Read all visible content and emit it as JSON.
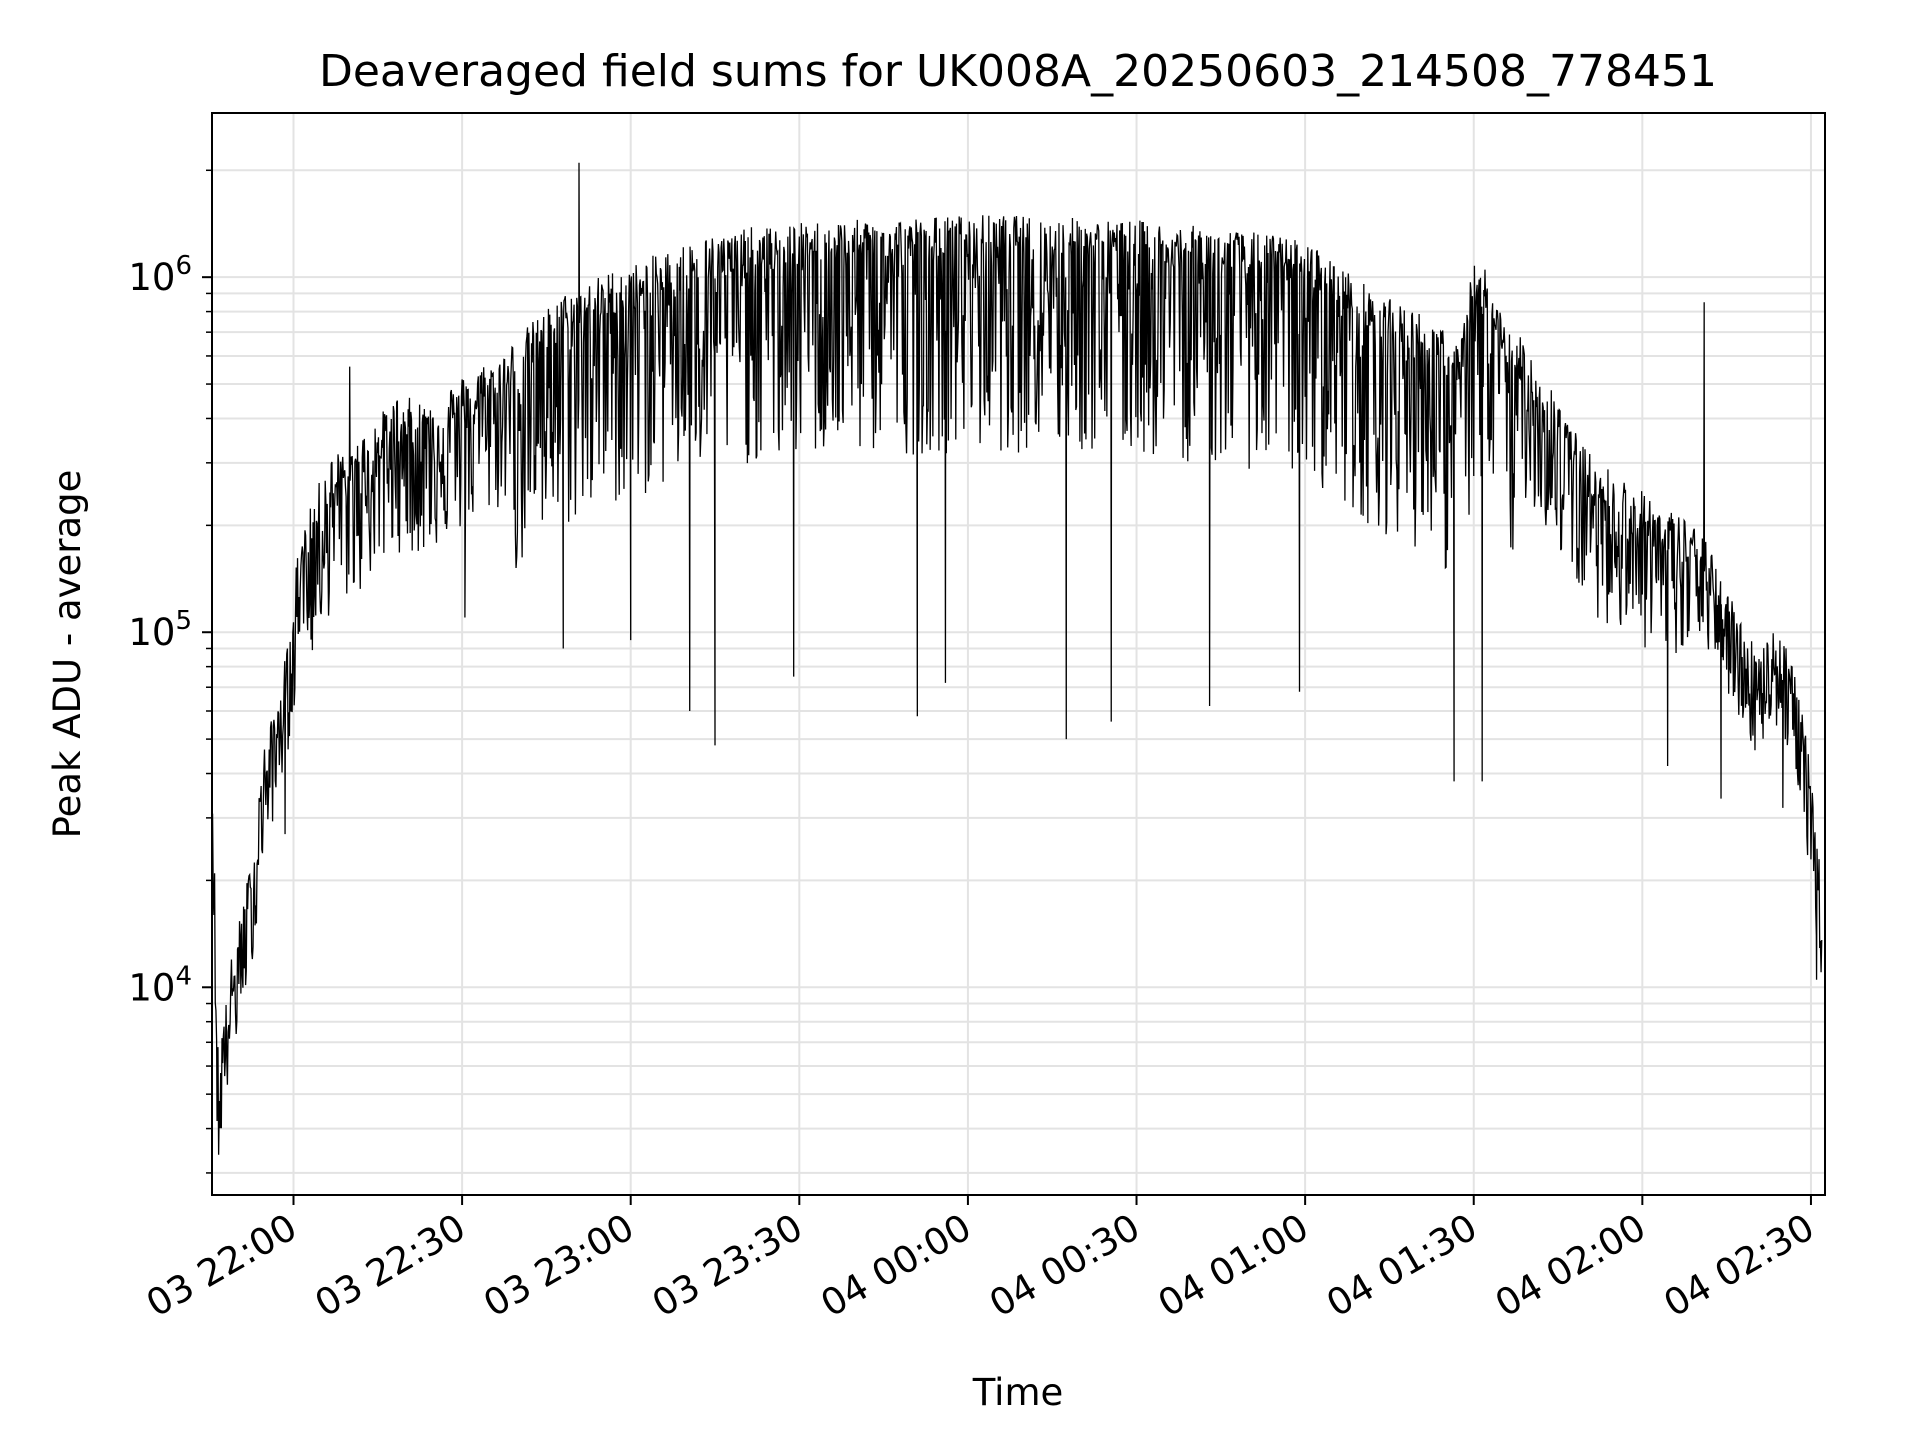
{
  "chart_data": {
    "type": "line",
    "title": "Deaveraged field sums for UK008A_20250603_214508_778451",
    "xlabel": "Time",
    "ylabel": "Peak ADU - average",
    "yscale": "log",
    "grid": true,
    "line_color": "#000000",
    "grid_color": "#e3e3e3",
    "x_tick_labels": [
      "03 22:00",
      "03 22:30",
      "03 23:00",
      "03 23:30",
      "04 00:00",
      "04 00:30",
      "04 01:00",
      "04 01:30",
      "04 02:00",
      "04 02:30"
    ],
    "x_tick_minutes": [
      60,
      90,
      120,
      150,
      180,
      210,
      240,
      270,
      300,
      330
    ],
    "xlim_minutes": [
      45.5,
      332.5
    ],
    "ylim": [
      2600,
      2900000
    ],
    "y_ticks": [
      {
        "base": "10",
        "exp": "4",
        "value": 10000
      },
      {
        "base": "10",
        "exp": "5",
        "value": 100000
      },
      {
        "base": "10",
        "exp": "6",
        "value": 1000000
      }
    ],
    "series": [
      {
        "x_minutes": [
          45.6,
          46.4,
          46.8,
          47.3,
          48.0,
          48.8,
          49.8,
          50.9,
          52.0,
          53.2,
          54.0,
          55.0,
          56.5,
          57.5,
          59.0,
          60.0,
          60.5,
          61.3,
          62.5,
          64.0,
          65.5,
          67.0,
          68.5,
          70.0,
          72.0,
          74.0,
          76.0,
          78.0,
          80.0,
          83.0,
          86.0,
          88.0,
          90.0,
          93.0,
          96.0,
          99.0,
          102.0,
          105.0,
          108.0,
          111.0,
          114.0,
          117.0,
          120.0,
          123.0,
          126.0,
          129.0,
          132.0,
          135.0,
          138.0,
          141.0,
          144.0,
          147.0,
          150.0,
          155.0,
          160.0,
          165.0,
          170.0,
          175.0,
          180.0,
          185.0,
          190.0,
          195.0,
          200.0,
          205.0,
          210.0,
          215.0,
          220.0,
          225.0,
          230.0,
          235.0,
          240.0,
          243.0,
          246.0,
          249.0,
          252.0,
          255.0,
          258.0,
          261.0,
          264.0,
          266.0,
          268.0,
          270.0,
          272.0,
          274.0,
          276.0,
          278.0,
          280.0,
          282.0,
          284.0,
          286.0,
          288.0,
          290.0,
          292.0,
          294.0,
          296.0,
          298.0,
          300.0,
          302.0,
          304.0,
          306.0,
          308.0,
          310.0,
          312.0,
          314.0,
          316.0,
          318.0,
          320.0,
          322.0,
          324.0,
          326.0,
          328.0,
          329.0,
          330.0,
          331.0,
          332.0
        ],
        "y": [
          35000,
          6500,
          4200,
          6500,
          7000,
          9000,
          10500,
          13000,
          16000,
          20000,
          30000,
          38000,
          45000,
          55000,
          70000,
          85000,
          120000,
          150000,
          160000,
          190000,
          220000,
          240000,
          250000,
          260000,
          270000,
          300000,
          320000,
          350000,
          350000,
          340000,
          370000,
          380000,
          400000,
          430000,
          450000,
          500000,
          560000,
          620000,
          680000,
          720000,
          760000,
          800000,
          820000,
          860000,
          900000,
          940000,
          980000,
          1000000,
          1020000,
          1050000,
          1050000,
          1060000,
          1080000,
          1100000,
          1100000,
          1120000,
          1120000,
          1130000,
          1140000,
          1140000,
          1130000,
          1120000,
          1120000,
          1100000,
          1100000,
          1080000,
          1060000,
          1040000,
          1020000,
          1000000,
          960000,
          900000,
          820000,
          760000,
          700000,
          660000,
          630000,
          600000,
          560000,
          480000,
          520000,
          900000,
          760000,
          640000,
          560000,
          520000,
          480000,
          420000,
          380000,
          330000,
          280000,
          250000,
          230000,
          220000,
          210000,
          200000,
          190000,
          180000,
          170000,
          165000,
          160000,
          150000,
          130000,
          110000,
          95000,
          80000,
          70000,
          75000,
          80000,
          70000,
          50000,
          40000,
          30000,
          20000,
          15000
        ]
      }
    ],
    "spikes_up": [
      {
        "x_minutes": 110.8,
        "y": 2100000
      },
      {
        "x_minutes": 311.0,
        "y": 850000
      },
      {
        "x_minutes": 272.0,
        "y": 1050000
      },
      {
        "x_minutes": 70.0,
        "y": 560000
      }
    ],
    "spikes_down": [
      {
        "x_minutes": 46.4,
        "y": 4200
      },
      {
        "x_minutes": 58.5,
        "y": 27000
      },
      {
        "x_minutes": 90.5,
        "y": 110000
      },
      {
        "x_minutes": 108.0,
        "y": 90000
      },
      {
        "x_minutes": 120.0,
        "y": 95000
      },
      {
        "x_minutes": 130.5,
        "y": 60000
      },
      {
        "x_minutes": 135.0,
        "y": 48000
      },
      {
        "x_minutes": 149.0,
        "y": 75000
      },
      {
        "x_minutes": 171.0,
        "y": 58000
      },
      {
        "x_minutes": 176.0,
        "y": 72000
      },
      {
        "x_minutes": 197.5,
        "y": 50000
      },
      {
        "x_minutes": 205.5,
        "y": 56000
      },
      {
        "x_minutes": 223.0,
        "y": 62000
      },
      {
        "x_minutes": 239.0,
        "y": 68000
      },
      {
        "x_minutes": 266.5,
        "y": 38000
      },
      {
        "x_minutes": 271.5,
        "y": 38000
      },
      {
        "x_minutes": 304.5,
        "y": 42000
      },
      {
        "x_minutes": 314.0,
        "y": 34000
      },
      {
        "x_minutes": 325.0,
        "y": 32000
      },
      {
        "x_minutes": 331.0,
        "y": 10500
      }
    ]
  }
}
